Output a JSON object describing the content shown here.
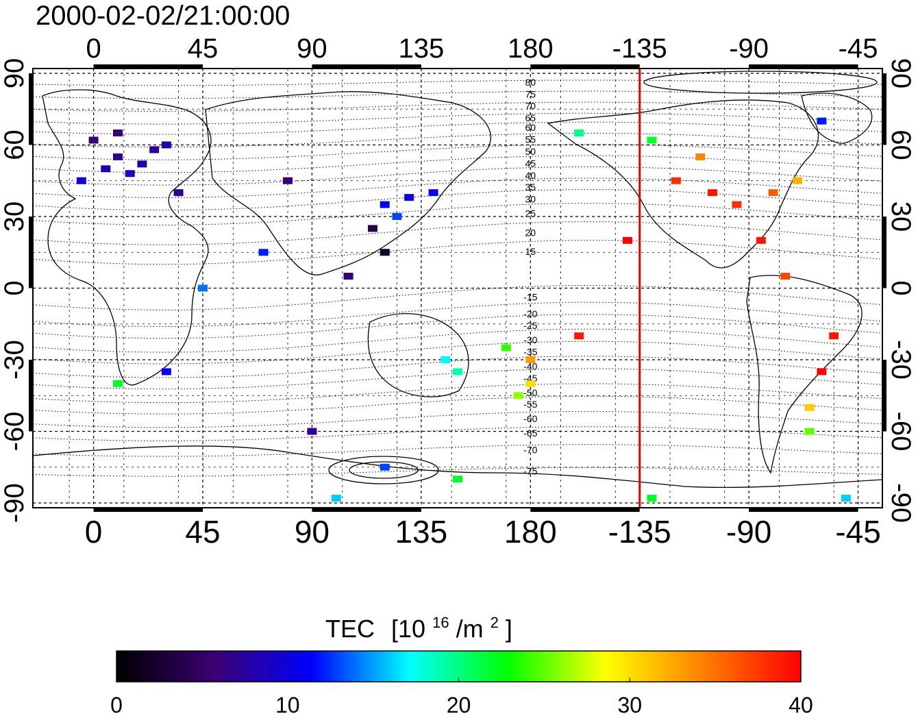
{
  "timestamp": "2000-02-02/21:00:00",
  "map": {
    "lon_tick_labels": [
      "0",
      "45",
      "90",
      "135",
      "180",
      "-135",
      "-90",
      "-45"
    ],
    "lon_tick_values": [
      0,
      45,
      90,
      135,
      180,
      225,
      270,
      315
    ],
    "lon_range": [
      -25,
      325
    ],
    "lat_tick_labels": [
      "90",
      "60",
      "30",
      "0",
      "-30",
      "-60",
      "-90"
    ],
    "lat_tick_values": [
      90,
      60,
      30,
      0,
      -30,
      -60,
      -90
    ],
    "lat_range": [
      -92,
      92
    ],
    "grid": true,
    "terminator_longitude": -135,
    "terminator_color": "#e00000",
    "contour_labels": [
      {
        "text": "80",
        "lat": 86
      },
      {
        "text": "75",
        "lat": 81
      },
      {
        "text": "70",
        "lat": 76
      },
      {
        "text": "65",
        "lat": 71
      },
      {
        "text": "60",
        "lat": 67
      },
      {
        "text": "55",
        "lat": 62
      },
      {
        "text": "50",
        "lat": 57
      },
      {
        "text": "45",
        "lat": 52
      },
      {
        "text": "40",
        "lat": 47
      },
      {
        "text": "35",
        "lat": 42
      },
      {
        "text": "30",
        "lat": 37
      },
      {
        "text": "25",
        "lat": 31
      },
      {
        "text": "20",
        "lat": 23
      },
      {
        "text": "15",
        "lat": 15
      },
      {
        "text": "-15",
        "lat": -4
      },
      {
        "text": "-20",
        "lat": -11
      },
      {
        "text": "-25",
        "lat": -16
      },
      {
        "text": "-30",
        "lat": -22
      },
      {
        "text": "-35",
        "lat": -27
      },
      {
        "text": "-40",
        "lat": -33
      },
      {
        "text": "-45",
        "lat": -38
      },
      {
        "text": "-50",
        "lat": -44
      },
      {
        "text": "-55",
        "lat": -49
      },
      {
        "text": "-60",
        "lat": -55
      },
      {
        "text": "-65",
        "lat": -61
      },
      {
        "text": "-70",
        "lat": -68
      },
      {
        "text": "-75",
        "lat": -77
      }
    ],
    "tec_points": [
      {
        "lon": 10,
        "lat": 55,
        "tec": 7
      },
      {
        "lon": 5,
        "lat": 50,
        "tec": 8
      },
      {
        "lon": 15,
        "lat": 48,
        "tec": 9
      },
      {
        "lon": 20,
        "lat": 52,
        "tec": 8
      },
      {
        "lon": 25,
        "lat": 58,
        "tec": 7
      },
      {
        "lon": 0,
        "lat": 62,
        "tec": 6
      },
      {
        "lon": 10,
        "lat": 65,
        "tec": 6
      },
      {
        "lon": 30,
        "lat": 60,
        "tec": 8
      },
      {
        "lon": -5,
        "lat": 45,
        "tec": 10
      },
      {
        "lon": 35,
        "lat": 40,
        "tec": 7
      },
      {
        "lon": 120,
        "lat": 35,
        "tec": 11
      },
      {
        "lon": 130,
        "lat": 38,
        "tec": 10
      },
      {
        "lon": 140,
        "lat": 40,
        "tec": 11
      },
      {
        "lon": 125,
        "lat": 30,
        "tec": 13
      },
      {
        "lon": 115,
        "lat": 25,
        "tec": 4
      },
      {
        "lon": 120,
        "lat": 15,
        "tec": 2
      },
      {
        "lon": 105,
        "lat": 5,
        "tec": 6
      },
      {
        "lon": 80,
        "lat": 45,
        "tec": 6
      },
      {
        "lon": 70,
        "lat": 15,
        "tec": 12
      },
      {
        "lon": 45,
        "lat": 0,
        "tec": 14
      },
      {
        "lon": 30,
        "lat": -35,
        "tec": 11
      },
      {
        "lon": 145,
        "lat": -30,
        "tec": 17
      },
      {
        "lon": 150,
        "lat": -35,
        "tec": 19
      },
      {
        "lon": 170,
        "lat": -25,
        "tec": 24
      },
      {
        "lon": 175,
        "lat": -45,
        "tec": 26
      },
      {
        "lon": 180,
        "lat": -40,
        "tec": 30
      },
      {
        "lon": 180,
        "lat": -30,
        "tec": 33
      },
      {
        "lon": 220,
        "lat": 20,
        "tec": 40
      },
      {
        "lon": 240,
        "lat": 45,
        "tec": 38
      },
      {
        "lon": 255,
        "lat": 40,
        "tec": 39
      },
      {
        "lon": 265,
        "lat": 35,
        "tec": 38
      },
      {
        "lon": 280,
        "lat": 40,
        "tec": 36
      },
      {
        "lon": 290,
        "lat": 45,
        "tec": 32
      },
      {
        "lon": 250,
        "lat": 55,
        "tec": 34
      },
      {
        "lon": 230,
        "lat": 62,
        "tec": 22
      },
      {
        "lon": 200,
        "lat": 65,
        "tec": 20
      },
      {
        "lon": 300,
        "lat": 70,
        "tec": 12
      },
      {
        "lon": 275,
        "lat": 20,
        "tec": 39
      },
      {
        "lon": 285,
        "lat": 5,
        "tec": 37
      },
      {
        "lon": 305,
        "lat": -20,
        "tec": 39
      },
      {
        "lon": 300,
        "lat": -35,
        "tec": 40
      },
      {
        "lon": 295,
        "lat": -50,
        "tec": 31
      },
      {
        "lon": 295,
        "lat": -60,
        "tec": 25
      },
      {
        "lon": 200,
        "lat": -20,
        "tec": 39
      },
      {
        "lon": 10,
        "lat": -40,
        "tec": 22
      },
      {
        "lon": 90,
        "lat": -60,
        "tec": 7
      },
      {
        "lon": 120,
        "lat": -75,
        "tec": 13
      },
      {
        "lon": 150,
        "lat": -80,
        "tec": 22
      },
      {
        "lon": 230,
        "lat": -88,
        "tec": 22
      },
      {
        "lon": 100,
        "lat": -88,
        "tec": 16
      },
      {
        "lon": 310,
        "lat": -88,
        "tec": 16
      }
    ]
  },
  "colorbar": {
    "title_prefix": "TEC",
    "title_bracket_open": "[10",
    "title_exp": "16",
    "title_unit": "/m",
    "title_unit_exp": "2",
    "title_bracket_close": "]",
    "tick_labels": [
      "0",
      "10",
      "20",
      "30",
      "40"
    ],
    "tick_values": [
      0,
      10,
      20,
      30,
      40
    ],
    "range": [
      0,
      40
    ],
    "stops": [
      "#000000",
      "#3a0070",
      "#0000ff",
      "#00ffff",
      "#00ff00",
      "#ffff00",
      "#ff8000",
      "#ff0000"
    ]
  }
}
